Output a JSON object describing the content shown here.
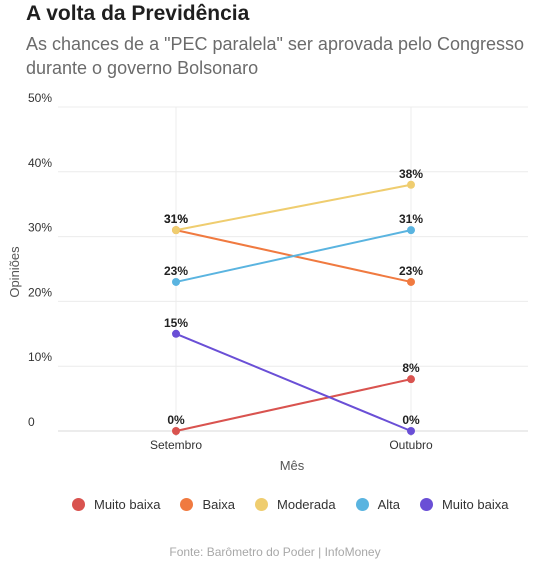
{
  "title": "A volta da Previdência",
  "subtitle": "As chances de a \"PEC paralela\" ser aprovada pelo Congresso durante o governo Bolsonaro",
  "source": "Fonte: Barômetro do Poder | InfoMoney",
  "chart_data": {
    "type": "line",
    "categories": [
      "Setembro",
      "Outubro"
    ],
    "xlabel": "Mês",
    "ylabel": "Opiniões",
    "ylim": [
      0,
      50
    ],
    "yticks": [
      {
        "value": 0,
        "label": "0"
      },
      {
        "value": 10,
        "label": "10%"
      },
      {
        "value": 20,
        "label": "20%"
      },
      {
        "value": 30,
        "label": "30%"
      },
      {
        "value": 40,
        "label": "40%"
      },
      {
        "value": 50,
        "label": "50%"
      }
    ],
    "grid": true,
    "legend_position": "bottom",
    "series": [
      {
        "name": "Muito baixa",
        "color": "#d9534f",
        "values": [
          0,
          8
        ],
        "labels": [
          "0%",
          "8%"
        ]
      },
      {
        "name": "Baixa",
        "color": "#f07a40",
        "values": [
          31,
          23
        ],
        "labels": [
          "31%",
          "23%"
        ]
      },
      {
        "name": "Moderada",
        "color": "#efcd6f",
        "values": [
          31,
          38
        ],
        "labels": [
          "31%",
          "38%"
        ]
      },
      {
        "name": "Alta",
        "color": "#5ab4e0",
        "values": [
          23,
          31
        ],
        "labels": [
          "23%",
          "31%"
        ]
      },
      {
        "name": "Muito baixa",
        "color": "#6a4fd6",
        "values": [
          15,
          0
        ],
        "labels": [
          "15%",
          "0%"
        ]
      }
    ]
  }
}
